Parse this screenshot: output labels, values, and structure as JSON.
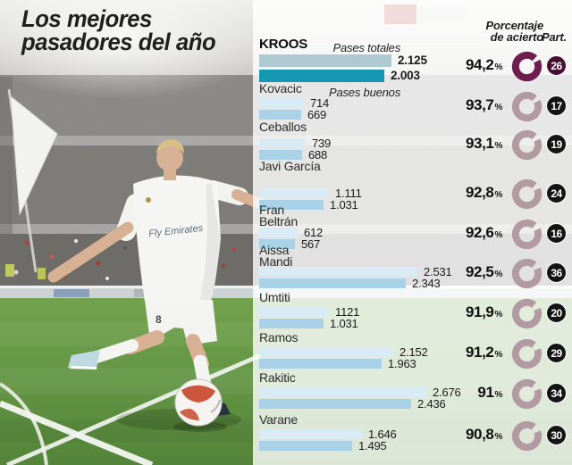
{
  "title": {
    "line1": "Los mejores",
    "line2": "pasadores del año"
  },
  "column_headers": {
    "accuracy_line1": "Porcentaje",
    "accuracy_line2": "de acierto",
    "participation": "Part."
  },
  "legend": {
    "total_label": "Pases totales",
    "good_label": "Pases buenos",
    "percent_sign": "%"
  },
  "photo": {
    "jersey_sponsor": "Fly Emirates",
    "shorts_number": "8"
  },
  "colors": {
    "bar_total": "#d9ebf4",
    "bar_good": "#a9d1e7",
    "bar_total_highlight": "#adc9d2",
    "bar_good_highlight": "#1697b1",
    "donut": "#b29aa3",
    "donut_highlight": "#6e1e4e",
    "badge": "#141414",
    "badge_highlight": "#47102f"
  },
  "chart_data": {
    "type": "bar",
    "orientation": "horizontal",
    "title": "Los mejores pasadores del año",
    "series_labels": [
      "Pases totales",
      "Pases buenos"
    ],
    "value_axis_max": 2676,
    "players": [
      {
        "name": "KROOS",
        "total": "2.125",
        "good": "2.003",
        "total_value": 2125,
        "good_value": 2003,
        "accuracy_label": "94,2",
        "accuracy_pct": 94.2,
        "matches": "26",
        "highlight": true
      },
      {
        "name": "Kovacic",
        "total": "714",
        "good": "669",
        "total_value": 714,
        "good_value": 669,
        "accuracy_label": "93,7",
        "accuracy_pct": 93.7,
        "matches": "17",
        "highlight": false
      },
      {
        "name": "Ceballos",
        "total": "739",
        "good": "688",
        "total_value": 739,
        "good_value": 688,
        "accuracy_label": "93,1",
        "accuracy_pct": 93.1,
        "matches": "19",
        "highlight": false
      },
      {
        "name": "Javi García",
        "total": "1.111",
        "good": "1.031",
        "total_value": 1111,
        "good_value": 1031,
        "accuracy_label": "92,8",
        "accuracy_pct": 92.8,
        "matches": "24",
        "highlight": false
      },
      {
        "name": "Fran Beltrán",
        "total": "612",
        "good": "567",
        "total_value": 612,
        "good_value": 567,
        "accuracy_label": "92,6",
        "accuracy_pct": 92.6,
        "matches": "16",
        "highlight": false
      },
      {
        "name": "Aissa Mandi",
        "total": "2.531",
        "good": "2.343",
        "total_value": 2531,
        "good_value": 2343,
        "accuracy_label": "92,5",
        "accuracy_pct": 92.5,
        "matches": "36",
        "highlight": false
      },
      {
        "name": "Umtiti",
        "total": "1121",
        "good": "1.031",
        "total_value": 1121,
        "good_value": 1031,
        "accuracy_label": "91,9",
        "accuracy_pct": 91.9,
        "matches": "20",
        "highlight": false
      },
      {
        "name": "Ramos",
        "total": "2.152",
        "good": "1.963",
        "total_value": 2152,
        "good_value": 1963,
        "accuracy_label": "91,2",
        "accuracy_pct": 91.2,
        "matches": "29",
        "highlight": false
      },
      {
        "name": "Rakitic",
        "total": "2.676",
        "good": "2.436",
        "total_value": 2676,
        "good_value": 2436,
        "accuracy_label": "91",
        "accuracy_pct": 91.0,
        "matches": "34",
        "highlight": false
      },
      {
        "name": "Varane",
        "total": "1.646",
        "good": "1.495",
        "total_value": 1646,
        "good_value": 1495,
        "accuracy_label": "90,8",
        "accuracy_pct": 90.8,
        "matches": "30",
        "highlight": false
      }
    ]
  }
}
